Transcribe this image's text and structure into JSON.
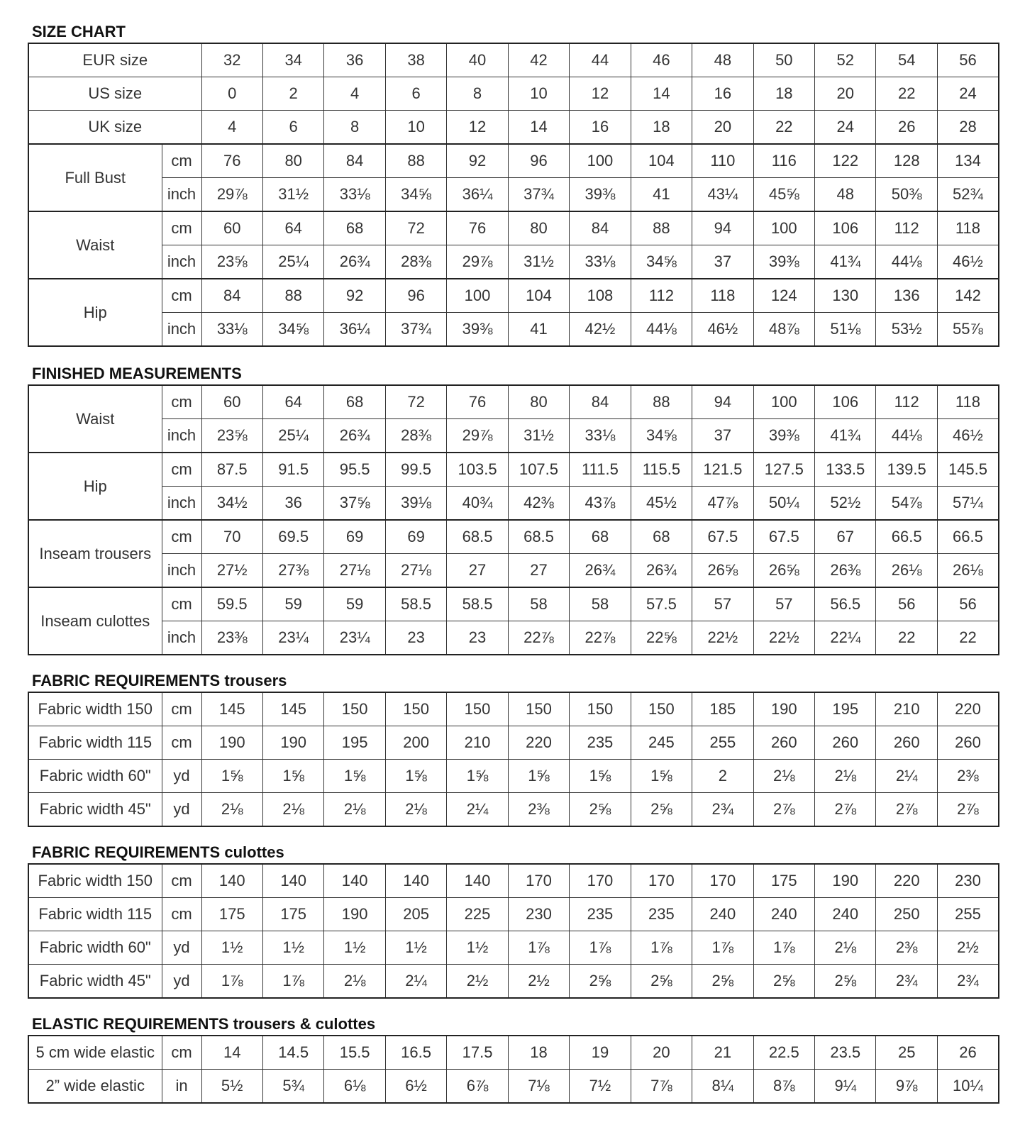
{
  "sections": [
    {
      "title": "SIZE CHART",
      "title_rest": "",
      "header_rows": [
        {
          "label": "EUR size",
          "values": [
            "32",
            "34",
            "36",
            "38",
            "40",
            "42",
            "44",
            "46",
            "48",
            "50",
            "52",
            "54",
            "56"
          ]
        },
        {
          "label": "US size",
          "values": [
            "0",
            "2",
            "4",
            "6",
            "8",
            "10",
            "12",
            "14",
            "16",
            "18",
            "20",
            "22",
            "24"
          ]
        },
        {
          "label": "UK size",
          "values": [
            "4",
            "6",
            "8",
            "10",
            "12",
            "14",
            "16",
            "18",
            "20",
            "22",
            "24",
            "26",
            "28"
          ]
        }
      ],
      "groups": [
        {
          "label": "Full Bust",
          "rows": [
            {
              "unit": "cm",
              "values": [
                "76",
                "80",
                "84",
                "88",
                "92",
                "96",
                "100",
                "104",
                "110",
                "116",
                "122",
                "128",
                "134"
              ]
            },
            {
              "unit": "inch",
              "values": [
                "29⅞",
                "31½",
                "33⅛",
                "34⅝",
                "36¼",
                "37¾",
                "39⅜",
                "41",
                "43¼",
                "45⅝",
                "48",
                "50⅜",
                "52¾"
              ]
            }
          ]
        },
        {
          "label": "Waist",
          "rows": [
            {
              "unit": "cm",
              "values": [
                "60",
                "64",
                "68",
                "72",
                "76",
                "80",
                "84",
                "88",
                "94",
                "100",
                "106",
                "112",
                "118"
              ]
            },
            {
              "unit": "inch",
              "values": [
                "23⅝",
                "25¼",
                "26¾",
                "28⅜",
                "29⅞",
                "31½",
                "33⅛",
                "34⅝",
                "37",
                "39⅜",
                "41¾",
                "44⅛",
                "46½"
              ]
            }
          ]
        },
        {
          "label": "Hip",
          "rows": [
            {
              "unit": "cm",
              "values": [
                "84",
                "88",
                "92",
                "96",
                "100",
                "104",
                "108",
                "112",
                "118",
                "124",
                "130",
                "136",
                "142"
              ]
            },
            {
              "unit": "inch",
              "values": [
                "33⅛",
                "34⅝",
                "36¼",
                "37¾",
                "39⅜",
                "41",
                "42½",
                "44⅛",
                "46½",
                "48⅞",
                "51⅛",
                "53½",
                "55⅞"
              ]
            }
          ]
        }
      ]
    },
    {
      "title": "FINISHED MEASUREMENTS",
      "title_rest": "",
      "groups": [
        {
          "label": "Waist",
          "rows": [
            {
              "unit": "cm",
              "values": [
                "60",
                "64",
                "68",
                "72",
                "76",
                "80",
                "84",
                "88",
                "94",
                "100",
                "106",
                "112",
                "118"
              ]
            },
            {
              "unit": "inch",
              "values": [
                "23⅝",
                "25¼",
                "26¾",
                "28⅜",
                "29⅞",
                "31½",
                "33⅛",
                "34⅝",
                "37",
                "39⅜",
                "41¾",
                "44⅛",
                "46½"
              ]
            }
          ]
        },
        {
          "label": "Hip",
          "rows": [
            {
              "unit": "cm",
              "values": [
                "87.5",
                "91.5",
                "95.5",
                "99.5",
                "103.5",
                "107.5",
                "111.5",
                "115.5",
                "121.5",
                "127.5",
                "133.5",
                "139.5",
                "145.5"
              ]
            },
            {
              "unit": "inch",
              "values": [
                "34½",
                "36",
                "37⅝",
                "39⅛",
                "40¾",
                "42⅜",
                "43⅞",
                "45½",
                "47⅞",
                "50¼",
                "52½",
                "54⅞",
                "57¼"
              ]
            }
          ]
        },
        {
          "label": "Inseam trousers",
          "rows": [
            {
              "unit": "cm",
              "values": [
                "70",
                "69.5",
                "69",
                "69",
                "68.5",
                "68.5",
                "68",
                "68",
                "67.5",
                "67.5",
                "67",
                "66.5",
                "66.5"
              ]
            },
            {
              "unit": "inch",
              "values": [
                "27½",
                "27⅜",
                "27⅛",
                "27⅛",
                "27",
                "27",
                "26¾",
                "26¾",
                "26⅝",
                "26⅝",
                "26⅜",
                "26⅛",
                "26⅛"
              ]
            }
          ]
        },
        {
          "label": "Inseam culottes",
          "rows": [
            {
              "unit": "cm",
              "values": [
                "59.5",
                "59",
                "59",
                "58.5",
                "58.5",
                "58",
                "58",
                "57.5",
                "57",
                "57",
                "56.5",
                "56",
                "56"
              ]
            },
            {
              "unit": "inch",
              "values": [
                "23⅜",
                "23¼",
                "23¼",
                "23",
                "23",
                "22⅞",
                "22⅞",
                "22⅝",
                "22½",
                "22½",
                "22¼",
                "22",
                "22"
              ]
            }
          ]
        }
      ]
    },
    {
      "title": "FABRIC REQUIREMENTS",
      "title_rest": " trousers",
      "rows": [
        {
          "label": "Fabric width 150",
          "unit": "cm",
          "values": [
            "145",
            "145",
            "150",
            "150",
            "150",
            "150",
            "150",
            "150",
            "185",
            "190",
            "195",
            "210",
            "220"
          ]
        },
        {
          "label": "Fabric width 115",
          "unit": "cm",
          "values": [
            "190",
            "190",
            "195",
            "200",
            "210",
            "220",
            "235",
            "245",
            "255",
            "260",
            "260",
            "260",
            "260"
          ]
        },
        {
          "label": "Fabric width 60\"",
          "unit": "yd",
          "values": [
            "1⅝",
            "1⅝",
            "1⅝",
            "1⅝",
            "1⅝",
            "1⅝",
            "1⅝",
            "1⅝",
            "2",
            "2⅛",
            "2⅛",
            "2¼",
            "2⅜"
          ]
        },
        {
          "label": "Fabric width 45\"",
          "unit": "yd",
          "values": [
            "2⅛",
            "2⅛",
            "2⅛",
            "2⅛",
            "2¼",
            "2⅜",
            "2⅝",
            "2⅝",
            "2¾",
            "2⅞",
            "2⅞",
            "2⅞",
            "2⅞"
          ]
        }
      ]
    },
    {
      "title": "FABRIC REQUIREMENTS",
      "title_rest": " culottes",
      "rows": [
        {
          "label": "Fabric width 150",
          "unit": "cm",
          "values": [
            "140",
            "140",
            "140",
            "140",
            "140",
            "170",
            "170",
            "170",
            "170",
            "175",
            "190",
            "220",
            "230"
          ]
        },
        {
          "label": "Fabric width 115",
          "unit": "cm",
          "values": [
            "175",
            "175",
            "190",
            "205",
            "225",
            "230",
            "235",
            "235",
            "240",
            "240",
            "240",
            "250",
            "255"
          ]
        },
        {
          "label": "Fabric width 60\"",
          "unit": "yd",
          "values": [
            "1½",
            "1½",
            "1½",
            "1½",
            "1½",
            "1⅞",
            "1⅞",
            "1⅞",
            "1⅞",
            "1⅞",
            "2⅛",
            "2⅜",
            "2½"
          ]
        },
        {
          "label": "Fabric width 45\"",
          "unit": "yd",
          "values": [
            "1⅞",
            "1⅞",
            "2⅛",
            "2¼",
            "2½",
            "2½",
            "2⅝",
            "2⅝",
            "2⅝",
            "2⅝",
            "2⅝",
            "2¾",
            "2¾"
          ]
        }
      ]
    },
    {
      "title": "ELASTIC REQUIREMENTS",
      "title_rest": " trousers & culottes",
      "rows": [
        {
          "label": "5 cm wide elastic",
          "unit": "cm",
          "values": [
            "14",
            "14.5",
            "15.5",
            "16.5",
            "17.5",
            "18",
            "19",
            "20",
            "21",
            "22.5",
            "23.5",
            "25",
            "26"
          ]
        },
        {
          "label": "2” wide elastic",
          "unit": "in",
          "values": [
            "5½",
            "5¾",
            "6⅛",
            "6½",
            "6⅞",
            "7⅛",
            "7½",
            "7⅞",
            "8¼",
            "8⅞",
            "9¼",
            "9⅞",
            "10¼"
          ]
        }
      ]
    }
  ]
}
